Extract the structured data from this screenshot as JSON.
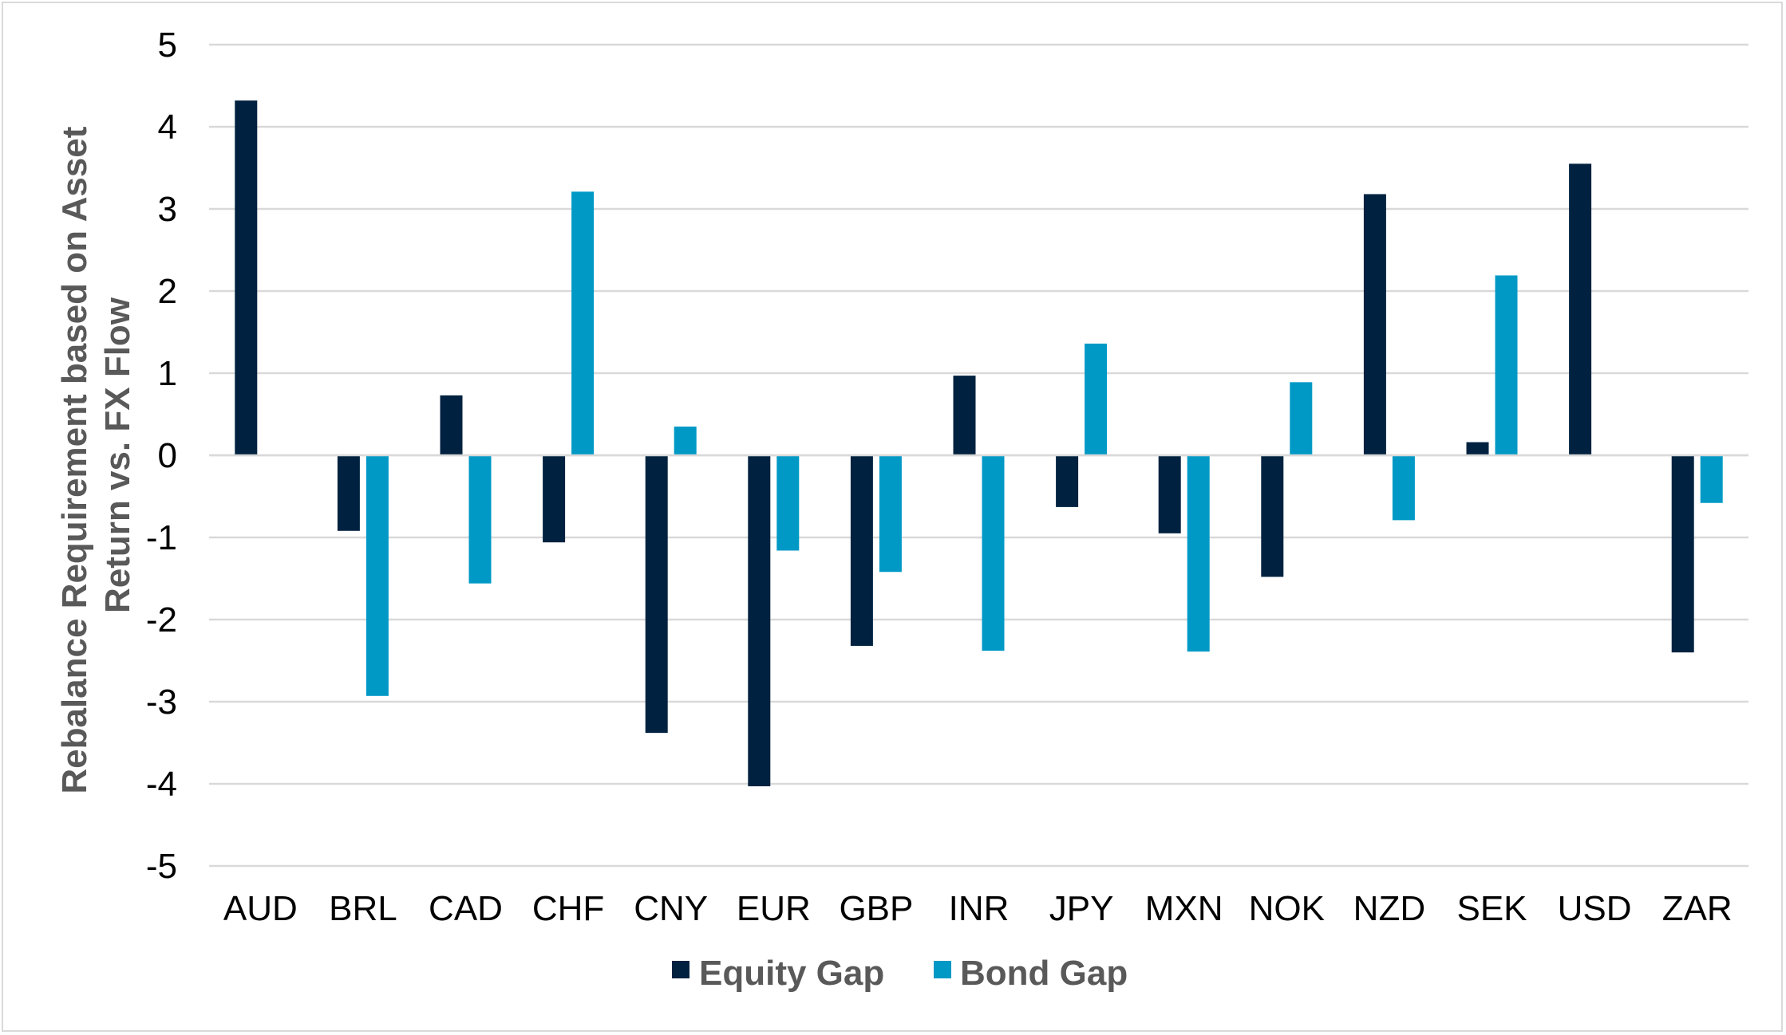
{
  "chart_data": {
    "type": "bar",
    "title": "",
    "xlabel": "",
    "ylabel_lines": [
      "Rebalance Requirement based on Asset",
      "Return vs. FX Flow"
    ],
    "ylim": [
      -5,
      5
    ],
    "yticks": [
      -5,
      -4,
      -3,
      -2,
      -1,
      0,
      1,
      2,
      3,
      4,
      5
    ],
    "grid": true,
    "legend_position": "bottom",
    "categories": [
      "AUD",
      "BRL",
      "CAD",
      "CHF",
      "CNY",
      "EUR",
      "GBP",
      "INR",
      "JPY",
      "MXN",
      "NOK",
      "NZD",
      "SEK",
      "USD",
      "ZAR"
    ],
    "series": [
      {
        "name": "Equity Gap",
        "color": "#002240",
        "values": [
          4.32,
          -0.92,
          0.73,
          -1.06,
          -3.38,
          -4.03,
          -2.32,
          0.97,
          -0.63,
          -0.95,
          -1.48,
          3.18,
          0.16,
          3.55,
          -2.4
        ]
      },
      {
        "name": "Bond Gap",
        "color": "#0099c6",
        "values": [
          0.0,
          -2.93,
          -1.56,
          3.21,
          0.35,
          -1.16,
          -1.42,
          -2.38,
          1.36,
          -2.39,
          0.89,
          -0.79,
          2.19,
          0.0,
          -0.58
        ]
      }
    ]
  }
}
